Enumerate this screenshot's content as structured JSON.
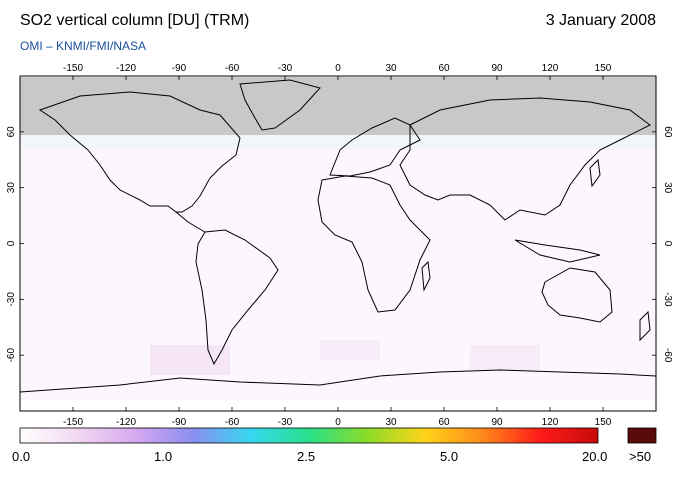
{
  "header": {
    "title": "SO2 vertical column [DU] (TRM)",
    "date": "3 January 2008",
    "credit": "OMI  –  KNMI/FMI/NASA"
  },
  "map": {
    "lon_ticks": [
      "-150",
      "-120",
      "-90",
      "-60",
      "-30",
      "0",
      "30",
      "60",
      "90",
      "120",
      "150"
    ],
    "lat_ticks": [
      "60",
      "30",
      "0",
      "-30",
      "-60"
    ],
    "no_data_color": "#c8c8c8",
    "land_outline_color": "#000000",
    "background_color": "#ffffff"
  },
  "colorbar": {
    "labels": [
      "0.0",
      "1.0",
      "2.5",
      "5.0",
      "20.0",
      ">50"
    ],
    "overflow_color": "#5a0a0a",
    "stops": [
      "#ffffff",
      "#f2d8f2",
      "#d6a8f0",
      "#8a8ef0",
      "#35d8f0",
      "#28e08a",
      "#8adc28",
      "#ffd41a",
      "#ff8a1a",
      "#ff1a1a",
      "#c80a0a"
    ]
  }
}
